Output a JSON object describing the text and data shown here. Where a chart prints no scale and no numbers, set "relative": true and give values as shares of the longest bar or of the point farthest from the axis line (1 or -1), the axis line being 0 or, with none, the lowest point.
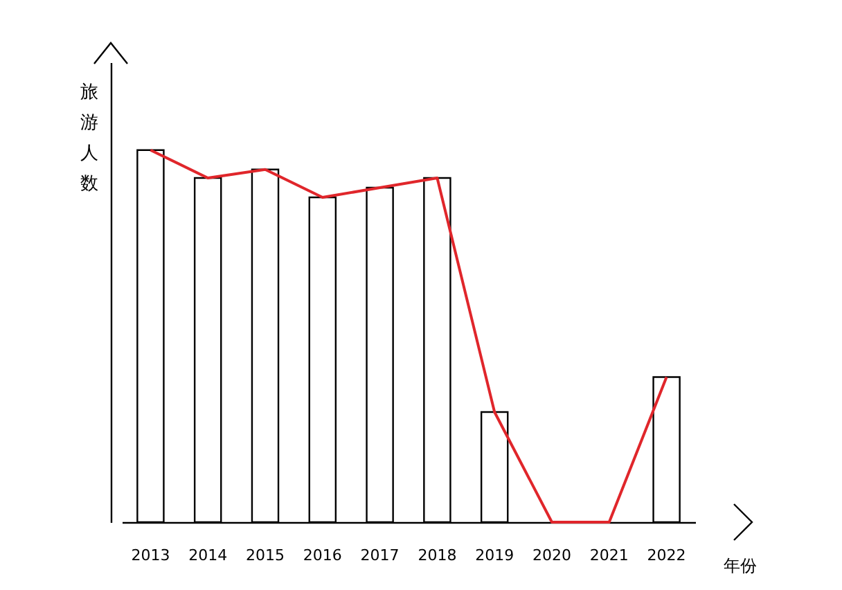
{
  "chart_data": {
    "type": "bar",
    "relative": true,
    "xlabel": "年份",
    "ylabel": "旅游人数",
    "categories": [
      "2013",
      "2014",
      "2015",
      "2016",
      "2017",
      "2018",
      "2019",
      "2020",
      "2021",
      "2022"
    ],
    "series": [
      {
        "color": "#ffffff",
        "values": [
          1,
          0.925,
          0.948,
          0.873,
          0.899,
          0.925,
          0.296,
          null,
          null,
          0.39
        ]
      },
      {
        "type": "line",
        "color": "#e0262b",
        "values": [
          1,
          0.925,
          0.948,
          0.873,
          0.899,
          0.925,
          0.296,
          0,
          0,
          0.39
        ]
      }
    ]
  }
}
